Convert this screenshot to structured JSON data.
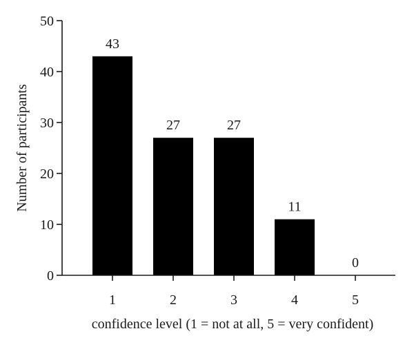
{
  "chart_data": {
    "type": "bar",
    "categories": [
      "1",
      "2",
      "3",
      "4",
      "5"
    ],
    "values": [
      43,
      27,
      27,
      11,
      0
    ],
    "data_labels": [
      "43",
      "27",
      "27",
      "11",
      "0"
    ],
    "title": "",
    "xlabel": "confidence level (1 = not at all, 5 = very confident)",
    "ylabel": "Number of participants",
    "ylim": [
      0,
      50
    ],
    "yticks": [
      0,
      10,
      20,
      30,
      40,
      50
    ],
    "ytick_labels": [
      "0",
      "10",
      "20",
      "30",
      "40",
      "50"
    ],
    "grid": false,
    "legend": "none",
    "bar_color": "#000000"
  }
}
